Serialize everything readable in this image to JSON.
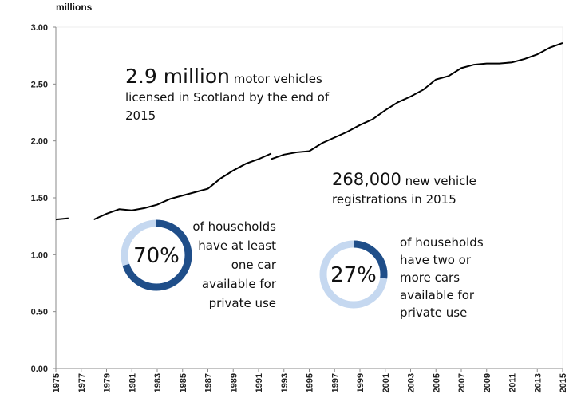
{
  "chart_data": {
    "type": "line",
    "ylabel": "millions",
    "ylim": [
      0,
      3
    ],
    "yticks": [
      "0.00",
      "0.50",
      "1.00",
      "1.50",
      "2.00",
      "2.50",
      "3.00"
    ],
    "xlim": [
      1975,
      2015
    ],
    "xticks": [
      "1975",
      "1977",
      "1979",
      "1981",
      "1983",
      "1985",
      "1987",
      "1989",
      "1991",
      "1993",
      "1995",
      "1997",
      "1999",
      "2001",
      "2003",
      "2005",
      "2007",
      "2009",
      "2011",
      "2013",
      "2015"
    ],
    "grid": false,
    "line_color": "#000000",
    "series": [
      {
        "segments": [
          {
            "x": [
              1975,
              1976
            ],
            "y": [
              1.31,
              1.32
            ]
          },
          {
            "x": [
              1978,
              1979,
              1980,
              1981,
              1982,
              1983,
              1984,
              1985,
              1986,
              1987,
              1988,
              1989,
              1990,
              1991,
              1992
            ],
            "y": [
              1.31,
              1.36,
              1.4,
              1.39,
              1.41,
              1.44,
              1.49,
              1.52,
              1.55,
              1.58,
              1.67,
              1.74,
              1.8,
              1.84,
              1.89
            ]
          },
          {
            "x": [
              1992,
              1993,
              1994,
              1995,
              1996,
              1997,
              1998,
              1999,
              2000,
              2001,
              2002,
              2003,
              2004,
              2005,
              2006,
              2007,
              2008,
              2009,
              2010,
              2011,
              2012,
              2013,
              2014,
              2015
            ],
            "y": [
              1.84,
              1.88,
              1.9,
              1.91,
              1.98,
              2.03,
              2.08,
              2.14,
              2.19,
              2.27,
              2.34,
              2.39,
              2.45,
              2.54,
              2.57,
              2.64,
              2.67,
              2.68,
              2.68,
              2.69,
              2.72,
              2.76,
              2.82,
              2.86
            ]
          }
        ]
      }
    ]
  },
  "annotations": {
    "vehicles": {
      "big": "2.9 million",
      "rest": "motor vehicles",
      "line2": "licensed in Scotland by the end of",
      "line3": "2015"
    },
    "registrations": {
      "big": "268,000",
      "rest": "new vehicle",
      "line2": "registrations in 2015"
    },
    "donut1": {
      "value": 70,
      "label": "70%",
      "lines": [
        "of households",
        "have at least",
        "one car",
        "available for",
        "private use"
      ]
    },
    "donut2": {
      "value": 27,
      "label": "27%",
      "lines": [
        "of households",
        "have two or",
        "more cars",
        "available for",
        "private use"
      ]
    },
    "colors": {
      "dark": "#1f4e89",
      "light": "#c5d8f0"
    }
  }
}
